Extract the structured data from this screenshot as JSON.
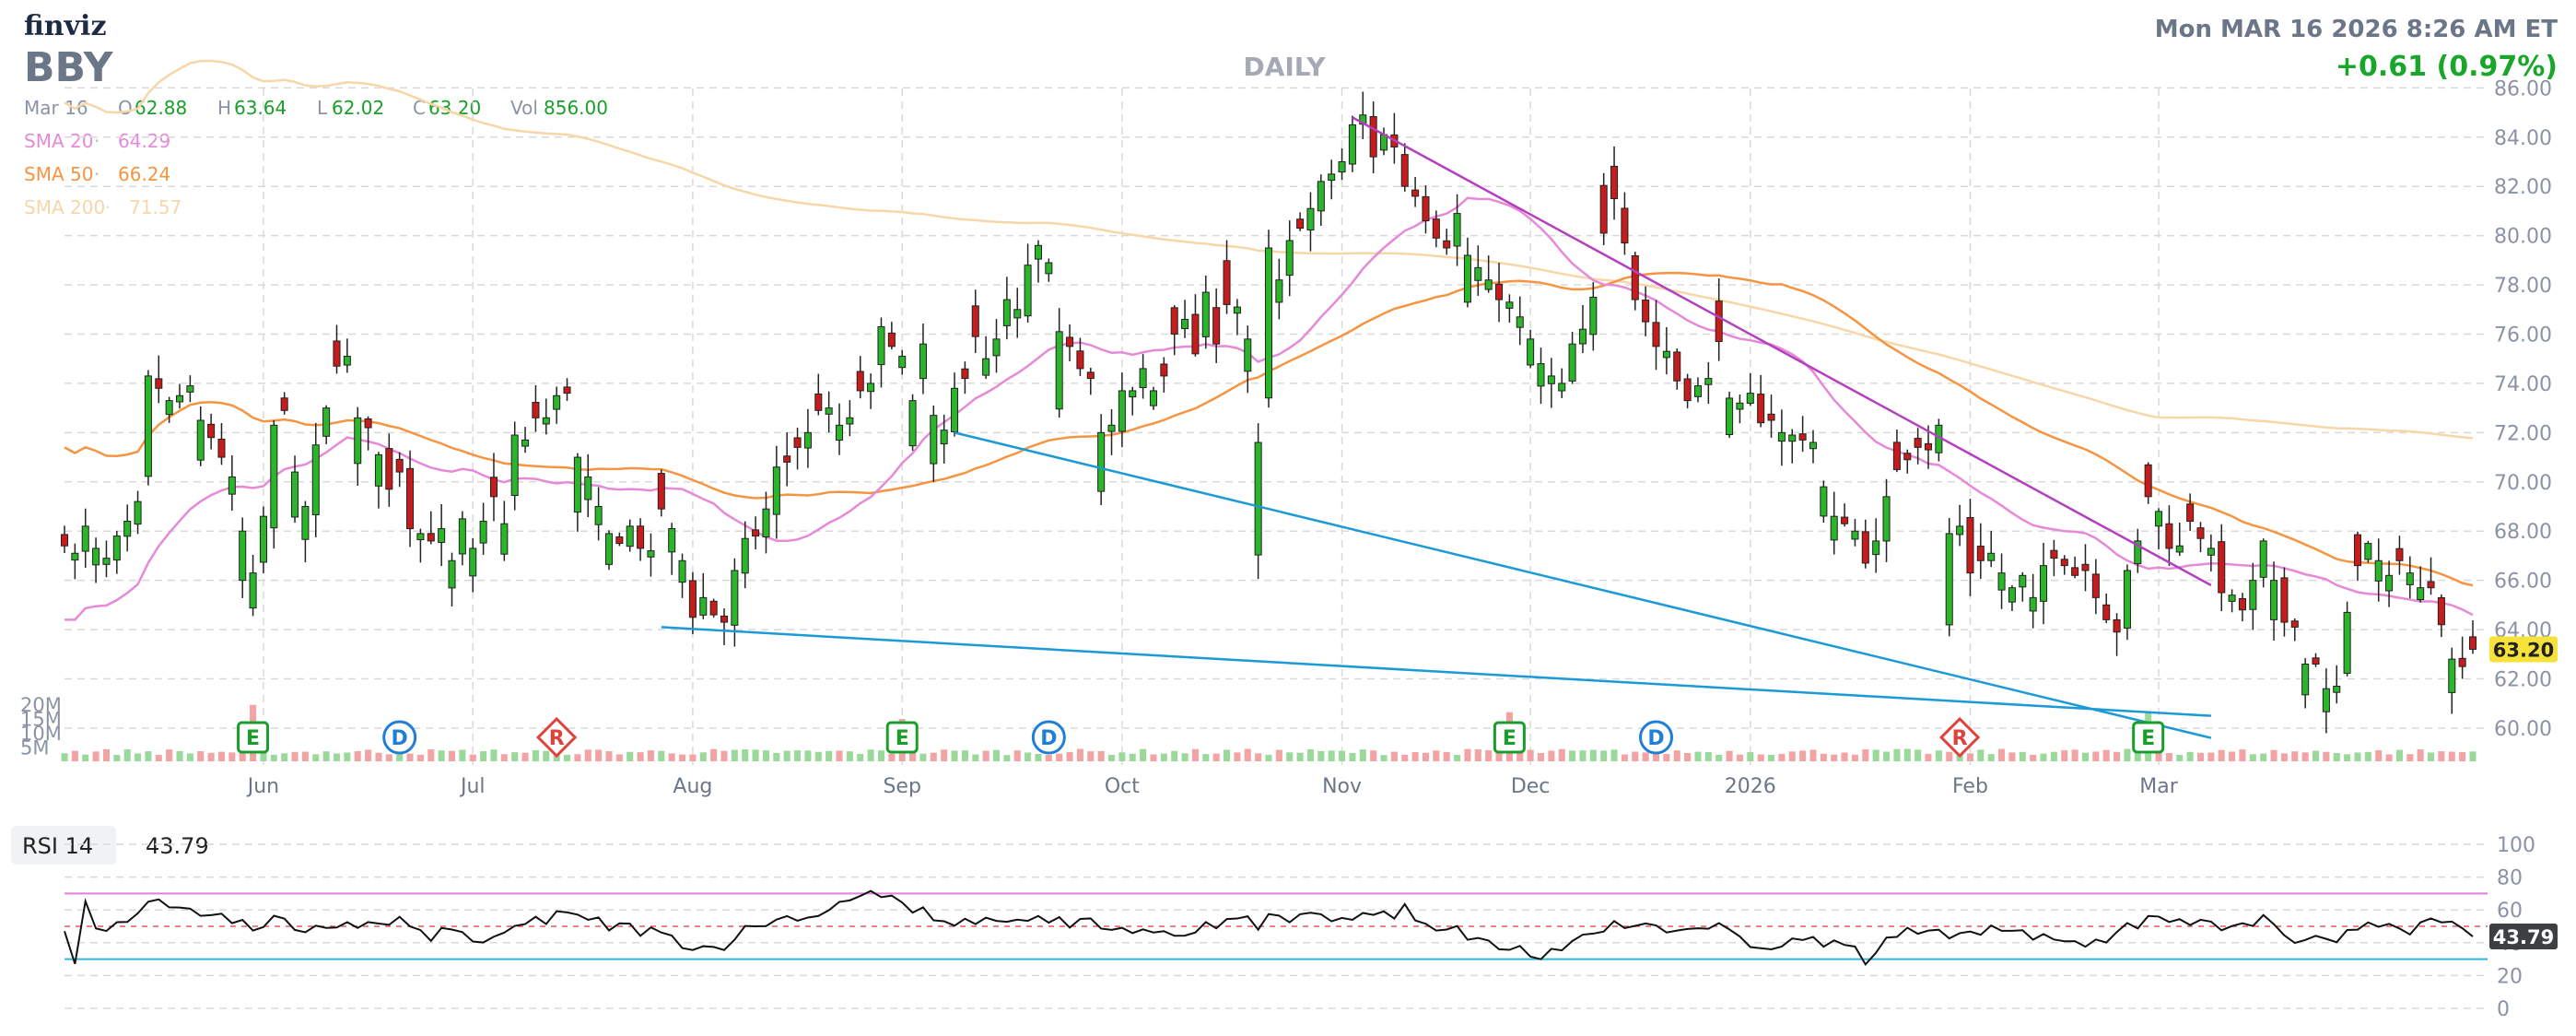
{
  "header": {
    "brand": "finviz",
    "ticker": "BBY",
    "period": "DAILY",
    "datetime": "Mon MAR 16 2026 8:26 AM ET",
    "change": "+0.61 (0.97%)"
  },
  "ohlc_row": {
    "date": "Mar 16",
    "o_label": "O",
    "o": "62.88",
    "h_label": "H",
    "h": "63.64",
    "l_label": "L",
    "l": "62.02",
    "c_label": "C",
    "c": "63.20",
    "vol_label": "Vol",
    "vol": "856.00"
  },
  "sma_legend": [
    {
      "label": "SMA 20",
      "value": "64.29",
      "color": "#e68ad8"
    },
    {
      "label": "SMA 50",
      "value": "66.24",
      "color": "#f59542"
    },
    {
      "label": "SMA 200",
      "value": "71.57",
      "color": "#f7d6a8"
    }
  ],
  "colors": {
    "up": "#2bb52b",
    "down": "#c71c1c",
    "vol_up": "#9bd99b",
    "vol_down": "#f2a3a3",
    "trend_upper": "#b43fbf",
    "trend_lower": "#1b9ad6",
    "price_badge": "#f7e23a",
    "grid": "#d9d9d9",
    "rsi_line": "#111111",
    "rsi_upper": "#e67ee0",
    "rsi_lower": "#33b8d6",
    "rsi_badge": "#3c4043"
  },
  "events": [
    {
      "letter": "E",
      "index": 18,
      "kind": "earnings"
    },
    {
      "letter": "D",
      "index": 32,
      "kind": "dividend"
    },
    {
      "letter": "R",
      "index": 47,
      "kind": "rating"
    },
    {
      "letter": "E",
      "index": 80,
      "kind": "earnings"
    },
    {
      "letter": "D",
      "index": 94,
      "kind": "dividend"
    },
    {
      "letter": "E",
      "index": 138,
      "kind": "earnings"
    },
    {
      "letter": "D",
      "index": 152,
      "kind": "dividend"
    },
    {
      "letter": "R",
      "index": 181,
      "kind": "rating"
    },
    {
      "letter": "E",
      "index": 199,
      "kind": "earnings"
    }
  ],
  "rsi": {
    "label": "RSI 14",
    "value": "43.79",
    "levels": [
      70,
      30
    ],
    "ticks": [
      "100",
      "80",
      "60",
      "40",
      "20",
      "0"
    ],
    "tick_values": [
      100,
      80,
      60,
      40,
      20,
      0
    ]
  },
  "chart_data": {
    "type": "candlestick",
    "title": "",
    "x_axis": {
      "tick_labels": [
        "Jun",
        "Jul",
        "Aug",
        "Sep",
        "Oct",
        "Nov",
        "Dec",
        "2026",
        "Feb",
        "Mar"
      ],
      "tick_index": [
        19,
        39,
        60,
        80,
        101,
        122,
        140,
        161,
        182,
        200
      ]
    },
    "y_axis": {
      "range": [
        58.8,
        86.2
      ],
      "ticks": [
        86,
        84,
        82,
        80,
        78,
        76,
        74,
        72,
        70,
        68,
        66,
        64,
        62,
        60
      ],
      "tick_labels": [
        "86.00",
        "84.00",
        "82.00",
        "80.00",
        "78.00",
        "76.00",
        "74.00",
        "72.00",
        "70.00",
        "68.00",
        "66.00",
        "64.00",
        "62.00",
        "60.00"
      ],
      "last_price": "63.20"
    },
    "volume_axis": {
      "tick_labels": [
        "20M",
        "15M",
        "10M",
        "5M"
      ],
      "tick_values": [
        20,
        15,
        10,
        5
      ],
      "unit": "M"
    },
    "close": [
      67.4,
      67.1,
      68.2,
      67.3,
      66.9,
      67.8,
      68.4,
      69.2,
      74.3,
      73.8,
      73.3,
      73.5,
      73.9,
      72.5,
      71.8,
      71.0,
      70.2,
      68.0,
      66.3,
      68.6,
      72.3,
      72.9,
      70.4,
      69.0,
      71.5,
      73.0,
      74.7,
      75.1,
      72.6,
      72.2,
      71.1,
      69.7,
      70.4,
      68.1,
      67.9,
      67.6,
      68.1,
      66.8,
      68.5,
      67.3,
      68.4,
      69.4,
      68.3,
      71.9,
      71.7,
      72.6,
      72.6,
      73.5,
      73.6,
      71.0,
      70.2,
      69.0,
      67.9,
      67.5,
      68.2,
      67.3,
      67.2,
      68.9,
      68.1,
      66.8,
      64.5,
      65.3,
      64.6,
      64.3,
      66.4,
      67.7,
      67.8,
      68.9,
      70.6,
      70.8,
      71.4,
      72.0,
      72.9,
      73.0,
      72.3,
      72.6,
      73.7,
      74.0,
      76.3,
      75.5,
      75.1,
      73.3,
      75.6,
      72.7,
      72.1,
      73.8,
      74.2,
      75.9,
      75.0,
      75.8,
      77.4,
      77.0,
      78.8,
      79.6,
      78.9,
      76.1,
      75.5,
      74.6,
      74.2,
      72.0,
      72.3,
      73.7,
      73.7,
      74.6,
      73.7,
      74.3,
      76.0,
      76.6,
      75.2,
      77.7,
      75.6,
      77.2,
      77.1,
      75.8,
      71.6,
      79.5,
      78.2,
      79.8,
      80.3,
      81.1,
      82.2,
      82.5,
      83.0,
      84.5,
      84.9,
      83.2,
      84.1,
      83.6,
      82.0,
      81.6,
      80.6,
      79.9,
      79.5,
      80.9,
      79.2,
      78.7,
      78.2,
      77.4,
      77.3,
      76.7,
      75.8,
      74.8,
      74.3,
      74.0,
      75.6,
      76.2,
      77.5,
      80.1,
      81.5,
      79.7,
      77.4,
      76.5,
      75.5,
      75.3,
      74.1,
      73.3,
      73.9,
      74.2,
      75.7,
      73.4,
      73.2,
      73.6,
      72.4,
      72.5,
      72.0,
      71.9,
      71.7,
      71.6,
      69.8,
      68.6,
      68.3,
      68.0,
      66.7,
      67.6,
      69.4,
      70.5,
      70.9,
      71.4,
      71.3,
      72.3,
      67.9,
      68.2,
      66.3,
      66.8,
      67.1,
      66.3,
      65.7,
      66.2,
      65.3,
      66.6,
      66.9,
      66.6,
      66.2,
      66.4,
      65.3,
      64.4,
      63.9,
      66.4,
      67.6,
      69.4,
      68.8,
      67.3,
      67.4,
      68.4,
      67.7,
      67.3,
      65.5,
      65.4,
      64.8,
      66.0,
      67.6,
      66.0,
      64.3,
      64.1,
      62.6,
      62.6,
      61.6,
      61.7,
      64.7,
      66.6,
      67.5,
      66.8,
      66.2,
      66.8,
      66.3,
      65.7,
      65.7,
      64.2,
      62.8,
      62.5,
      63.2
    ],
    "sma_20_last": 64.29,
    "sma_50_last": 66.24,
    "sma_200_last": 71.57,
    "trendlines": [
      {
        "name": "upper",
        "from": [
          123,
          84.8
        ],
        "to": [
          205,
          65.8
        ]
      },
      {
        "name": "lower-1",
        "from": [
          85,
          72.0
        ],
        "to": [
          205,
          59.6
        ]
      },
      {
        "name": "lower-2",
        "from": [
          57,
          64.1
        ],
        "to": [
          205,
          60.5
        ]
      }
    ],
    "rsi_last": 43.79
  }
}
